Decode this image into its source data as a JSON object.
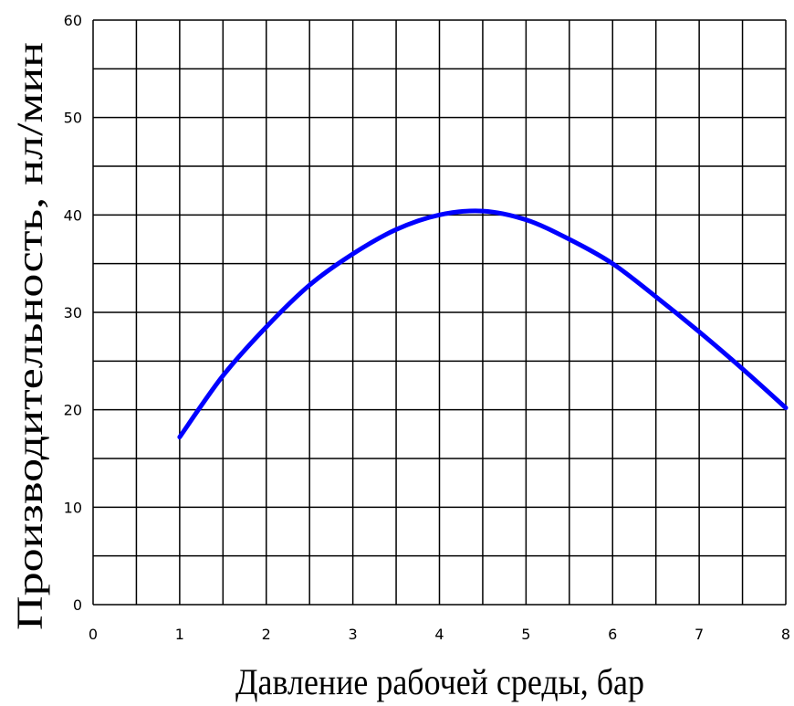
{
  "chart_data": {
    "type": "line",
    "title": "",
    "xlabel": "Давление рабочей среды, бар",
    "ylabel": "Производительность, нл/мин",
    "xlim": [
      0,
      8
    ],
    "ylim": [
      0,
      60
    ],
    "x_ticks": [
      "0",
      "1",
      "2",
      "3",
      "4",
      "5",
      "6",
      "7",
      "8"
    ],
    "y_ticks": [
      "0",
      "10",
      "20",
      "30",
      "40",
      "50",
      "60"
    ],
    "grid": true,
    "x_grid_step": 0.5,
    "y_grid_step": 5,
    "series": [
      {
        "color": "#0000ff",
        "points": [
          [
            1.0,
            17.2
          ],
          [
            1.5,
            23.5
          ],
          [
            2.0,
            28.5
          ],
          [
            2.5,
            32.8
          ],
          [
            3.0,
            36.0
          ],
          [
            3.5,
            38.5
          ],
          [
            4.0,
            40.0
          ],
          [
            4.5,
            40.4
          ],
          [
            5.0,
            39.5
          ],
          [
            5.5,
            37.5
          ],
          [
            6.0,
            35.0
          ],
          [
            6.5,
            31.6
          ],
          [
            7.0,
            28.0
          ],
          [
            7.5,
            24.2
          ],
          [
            8.0,
            20.2
          ]
        ]
      }
    ]
  }
}
